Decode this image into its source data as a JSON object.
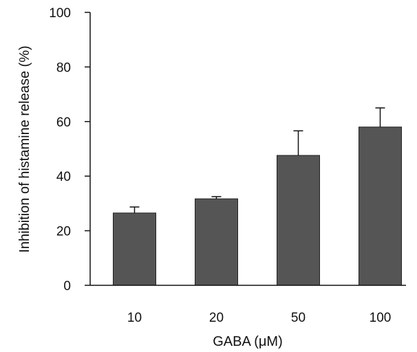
{
  "chart_data": {
    "type": "bar",
    "categories": [
      "10",
      "20",
      "50",
      "100"
    ],
    "values": [
      26.5,
      31.7,
      47.6,
      58.0
    ],
    "errors": [
      2.2,
      0.8,
      9.0,
      7.0
    ],
    "xlabel": "GABA (μM)",
    "ylabel": "Inhibition of histamine release (%)",
    "ylim": [
      0,
      100
    ],
    "yticks": [
      0,
      20,
      40,
      60,
      80,
      100
    ],
    "grid": false,
    "bar_color": "#555555",
    "error_bar_direction": "up"
  }
}
